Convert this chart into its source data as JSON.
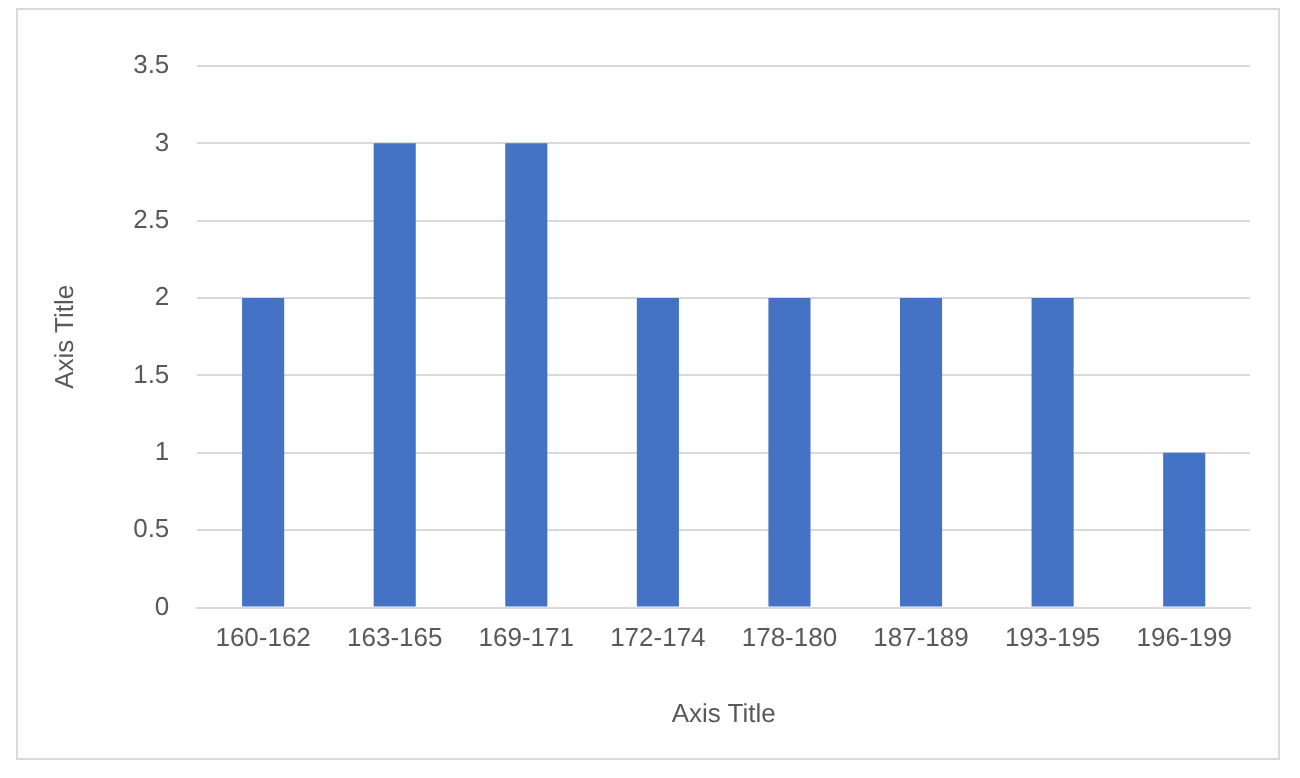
{
  "chart_data": {
    "type": "bar",
    "xlabel": "Axis Title",
    "ylabel": "Axis Title",
    "categories": [
      "160-162",
      "163-165",
      "169-171",
      "172-174",
      "178-180",
      "187-189",
      "193-195",
      "196-199"
    ],
    "values": [
      2,
      3,
      3,
      2,
      2,
      2,
      2,
      1
    ],
    "color": "#4472c4",
    "ylim": [
      0,
      3.5
    ],
    "yticks": [
      0,
      0.5,
      1,
      1.5,
      2,
      2.5,
      3,
      3.5
    ],
    "grid": "y",
    "legend": false
  }
}
